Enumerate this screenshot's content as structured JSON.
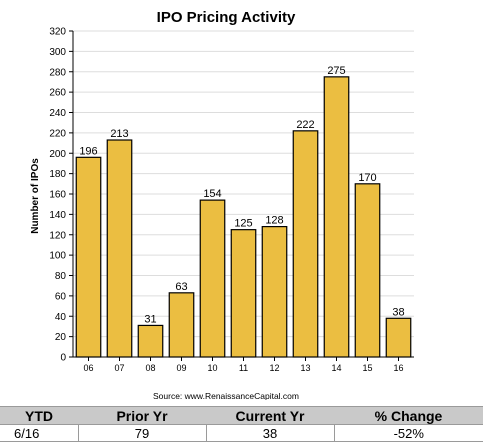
{
  "chart_data": {
    "type": "bar",
    "title": "IPO Pricing Activity",
    "ylabel": "Number of IPOs",
    "xlabel": "",
    "categories": [
      "06",
      "07",
      "08",
      "09",
      "10",
      "11",
      "12",
      "13",
      "14",
      "15",
      "16"
    ],
    "values": [
      196,
      213,
      31,
      63,
      154,
      125,
      128,
      222,
      275,
      170,
      38
    ],
    "ylim": [
      0,
      320
    ],
    "yticks": [
      0,
      20,
      40,
      60,
      80,
      100,
      120,
      140,
      160,
      180,
      200,
      220,
      240,
      260,
      280,
      300,
      320
    ],
    "grid": true,
    "bar_color": "#EBBE41",
    "source": "Source: www.RenaissanceCapital.com"
  },
  "summary": {
    "headers": [
      "YTD",
      "Prior Yr",
      "Current Yr",
      "% Change"
    ],
    "row": [
      "6/16",
      "79",
      "38",
      "-52%"
    ]
  }
}
